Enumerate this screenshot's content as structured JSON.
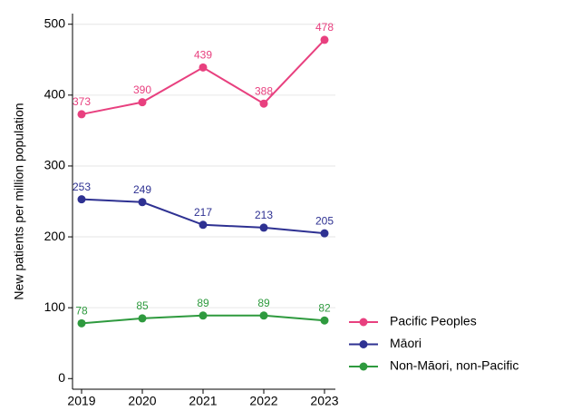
{
  "chart_data": {
    "type": "line",
    "y_label": "New patients per million population",
    "categories": [
      "2019",
      "2020",
      "2021",
      "2022",
      "2023"
    ],
    "series": [
      {
        "name": "Pacific Peoples",
        "color": "#e8407f",
        "values": [
          373,
          390,
          439,
          388,
          478
        ]
      },
      {
        "name": "Māori",
        "color": "#2e3192",
        "values": [
          253,
          249,
          217,
          213,
          205
        ]
      },
      {
        "name": "Non-Māori, non-Pacific",
        "color": "#2e9a3e",
        "values": [
          78,
          85,
          89,
          89,
          82
        ]
      }
    ],
    "ylim": [
      -15,
      515
    ],
    "yticks": [
      0,
      100,
      200,
      300,
      400,
      500
    ],
    "grid": true,
    "legend": "right"
  }
}
